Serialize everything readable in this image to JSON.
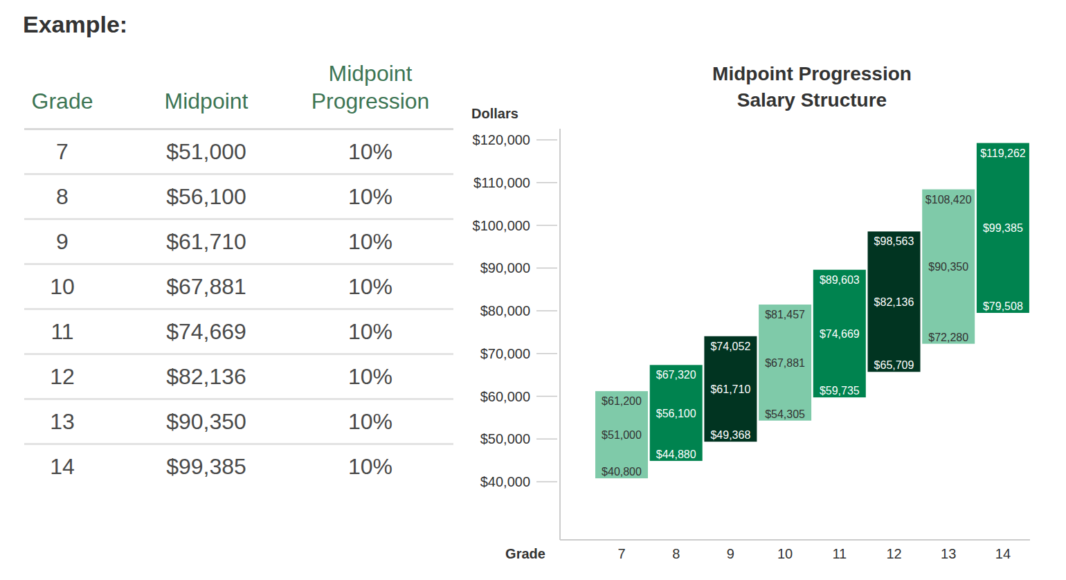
{
  "heading": "Example:",
  "table": {
    "columns": [
      "Grade",
      "Midpoint",
      "Midpoint Progression"
    ],
    "rows": [
      [
        "7",
        "$51,000",
        "10%"
      ],
      [
        "8",
        "$56,100",
        "10%"
      ],
      [
        "9",
        "$61,710",
        "10%"
      ],
      [
        "10",
        "$67,881",
        "10%"
      ],
      [
        "11",
        "$74,669",
        "10%"
      ],
      [
        "12",
        "$82,136",
        "10%"
      ],
      [
        "13",
        "$90,350",
        "10%"
      ],
      [
        "14",
        "$99,385",
        "10%"
      ]
    ]
  },
  "chart_data": {
    "type": "range_bar",
    "title": "Midpoint Progression Salary Structure",
    "y_label": "Dollars",
    "x_label": "Grade",
    "categories": [
      "7",
      "8",
      "9",
      "10",
      "11",
      "12",
      "13",
      "14"
    ],
    "series": [
      {
        "values": [
          40800,
          44880,
          49368,
          54305,
          59735,
          65709,
          72280,
          79508
        ],
        "value_labels": [
          "$40,800",
          "$44,880",
          "$49,368",
          "$54,305",
          "$59,735",
          "$65,709",
          "$72,280",
          "$79,508"
        ]
      },
      {
        "values": [
          51000,
          56100,
          61710,
          67881,
          74669,
          82136,
          90350,
          99385
        ],
        "value_labels": [
          "$51,000",
          "$56,100",
          "$61,710",
          "$67,881",
          "$74,669",
          "$82,136",
          "$90,350",
          "$99,385"
        ]
      },
      {
        "values": [
          61200,
          67320,
          74052,
          81457,
          89603,
          98563,
          108420,
          119262
        ],
        "value_labels": [
          "$61,200",
          "$67,320",
          "$74,052",
          "$81,457",
          "$89,603",
          "$98,563",
          "$108,420",
          "$119,262"
        ]
      }
    ],
    "colors": [
      "#7fcaa9",
      "#00834f",
      "#013421",
      "#7fcaa9",
      "#00834f",
      "#013421",
      "#7fcaa9",
      "#00834f"
    ],
    "ylim": [
      26400,
      122600
    ],
    "yticks": [
      {
        "value": 40000,
        "label": "$40,000"
      },
      {
        "value": 50000,
        "label": "$50,000"
      },
      {
        "value": 60000,
        "label": "$60,000"
      },
      {
        "value": 70000,
        "label": "$70,000"
      },
      {
        "value": 80000,
        "label": "$80,000"
      },
      {
        "value": 90000,
        "label": "$90,000"
      },
      {
        "value": 100000,
        "label": "$100,000"
      },
      {
        "value": 110000,
        "label": "$110,000"
      },
      {
        "value": 120000,
        "label": "$120,000"
      }
    ],
    "grid": false,
    "data_labels": true
  }
}
